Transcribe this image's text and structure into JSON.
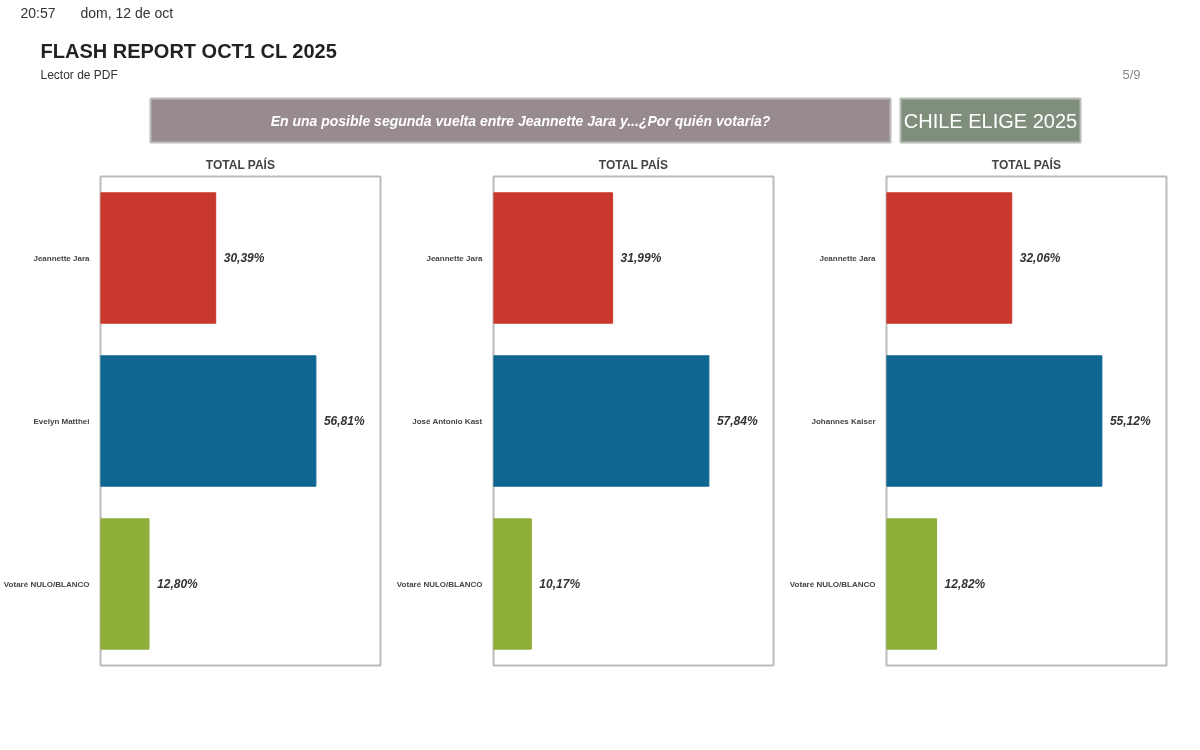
{
  "chart_data": [
    {
      "type": "other",
      "title": "FLASH REPORT OCT1 CL 2025",
      "annotations": [
        "Lector de PDF",
        "En una posible segunda vuelta entre Jeannette Jara y...¿Por quién votaría?",
        "CHILE ELIGE 2025",
        "20:57",
        "dom, 12 de oct",
        "5/9"
      ]
    },
    {
      "type": "bar",
      "orientation": "horizontal",
      "title": "TOTAL PAÍS",
      "categories": [
        "Jeannette Jara",
        "Evelyn Matthei",
        "Votaré NULO/BLANCO"
      ],
      "values": [
        30.39,
        56.81,
        12.8
      ],
      "colors": [
        "#c8382c",
        "#0f6690",
        "#8fae3a"
      ],
      "value_labels": [
        "30,39%",
        "56,81%",
        "12,80%"
      ]
    },
    {
      "type": "bar",
      "orientation": "horizontal",
      "title": "TOTAL PAÍS",
      "categories": [
        "Jeannette Jara",
        "José Antonio Kast",
        "Votaré NULO/BLANCO"
      ],
      "values": [
        31.99,
        57.84,
        10.17
      ],
      "colors": [
        "#c8382c",
        "#0f6690",
        "#8fae3a"
      ],
      "value_labels": [
        "31,99%",
        "57,84%",
        "10,17%"
      ]
    },
    {
      "type": "bar",
      "orientation": "horizontal",
      "title": "TOTAL PAÍS",
      "categories": [
        "Jeannette Jara",
        "Johannes Kaiser",
        "Votaré NULO/BLANCO"
      ],
      "values": [
        32.06,
        55.12,
        12.82
      ],
      "colors": [
        "#c8382c",
        "#0f6690",
        "#8fae3a"
      ],
      "value_labels": [
        "32,06%",
        "55,12%",
        "12,82%"
      ]
    }
  ]
}
